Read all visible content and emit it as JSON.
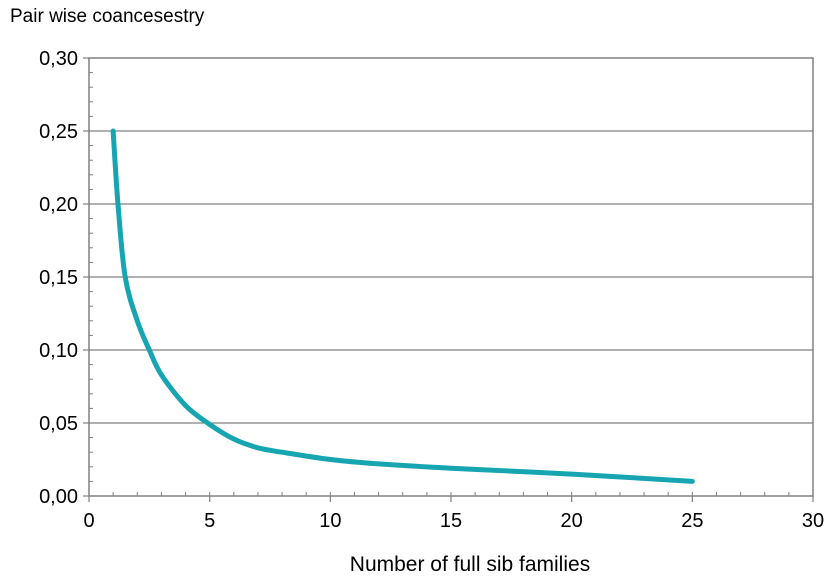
{
  "chart_data": {
    "type": "line",
    "title": "",
    "ylabel": "Pair wise coancesestry",
    "xlabel": "Number  of  full  sib families",
    "xlim": [
      0,
      30
    ],
    "ylim": [
      0.0,
      0.3
    ],
    "x_ticks": [
      "0",
      "5",
      "10",
      "15",
      "20",
      "25",
      "30"
    ],
    "y_ticks": [
      "0,00",
      "0,05",
      "0,10",
      "0,15",
      "0,20",
      "0,25",
      "0,30"
    ],
    "grid": "horizontal",
    "legend": "none",
    "series": [
      {
        "color": "#17a5b2",
        "x": [
          1,
          1.2,
          1.5,
          2,
          2.5,
          3,
          4,
          5,
          6,
          7,
          8,
          10,
          12,
          15,
          20,
          25
        ],
        "y": [
          0.25,
          0.2,
          0.15,
          0.12,
          0.1,
          0.083,
          0.062,
          0.049,
          0.039,
          0.033,
          0.03,
          0.025,
          0.022,
          0.019,
          0.015,
          0.01
        ]
      }
    ]
  }
}
